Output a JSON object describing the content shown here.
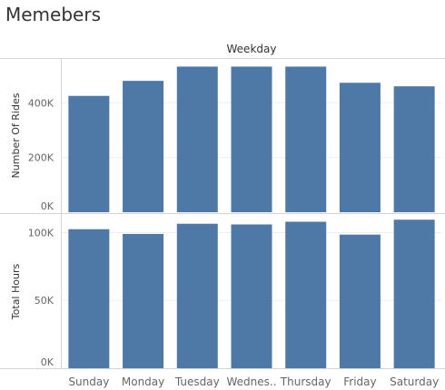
{
  "dashboard": {
    "title": "Memebers"
  },
  "chart_data": {
    "type": "bar",
    "column_header": "Weekday",
    "categories": [
      "Sunday",
      "Monday",
      "Tuesday",
      "Wednes..",
      "Thursday",
      "Friday",
      "Saturday"
    ],
    "series": [
      {
        "name": "Number Of Rides",
        "ylabel": "Number Of Rides",
        "values": [
          425000,
          480000,
          532000,
          532000,
          532000,
          473000,
          460000
        ],
        "ylim": [
          0,
          560000
        ],
        "ticks": [
          {
            "value": 0,
            "label": "0K"
          },
          {
            "value": 200000,
            "label": "200K"
          },
          {
            "value": 400000,
            "label": "400K"
          }
        ]
      },
      {
        "name": "Total Hours",
        "ylabel": "Total Hours",
        "values": [
          102500,
          99000,
          106500,
          106000,
          108000,
          98500,
          109500
        ],
        "ylim": [
          0,
          113000
        ],
        "ticks": [
          {
            "value": 0,
            "label": "0K"
          },
          {
            "value": 50000,
            "label": "50K"
          },
          {
            "value": 100000,
            "label": "100K"
          }
        ]
      }
    ],
    "bar_color": "#4e79a7",
    "grid": true
  }
}
